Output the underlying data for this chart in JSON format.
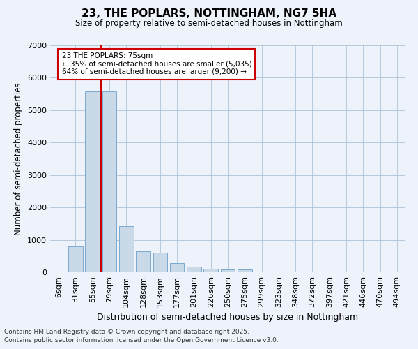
{
  "title": "23, THE POPLARS, NOTTINGHAM, NG7 5HA",
  "subtitle": "Size of property relative to semi-detached houses in Nottingham",
  "xlabel": "Distribution of semi-detached houses by size in Nottingham",
  "ylabel": "Number of semi-detached properties",
  "categories": [
    "6sqm",
    "31sqm",
    "55sqm",
    "79sqm",
    "104sqm",
    "128sqm",
    "153sqm",
    "177sqm",
    "201sqm",
    "226sqm",
    "250sqm",
    "275sqm",
    "299sqm",
    "323sqm",
    "348sqm",
    "372sqm",
    "397sqm",
    "421sqm",
    "446sqm",
    "470sqm",
    "494sqm"
  ],
  "values": [
    10,
    800,
    5580,
    5580,
    1430,
    640,
    610,
    290,
    175,
    105,
    90,
    90,
    10,
    5,
    3,
    3,
    3,
    3,
    3,
    3,
    3
  ],
  "bar_color": "#c9d9e8",
  "bar_edge_color": "#7aaacf",
  "red_line_bar_index": 3,
  "annotation_text": "23 THE POPLARS: 75sqm\n← 35% of semi-detached houses are smaller (5,035)\n64% of semi-detached houses are larger (9,200) →",
  "annotation_box_color": "#ffffff",
  "annotation_box_edge": "#cc0000",
  "footnote1": "Contains HM Land Registry data © Crown copyright and database right 2025.",
  "footnote2": "Contains public sector information licensed under the Open Government Licence v3.0.",
  "background_color": "#eef2fb",
  "ylim": [
    0,
    7000
  ],
  "yticks": [
    0,
    1000,
    2000,
    3000,
    4000,
    5000,
    6000,
    7000
  ]
}
